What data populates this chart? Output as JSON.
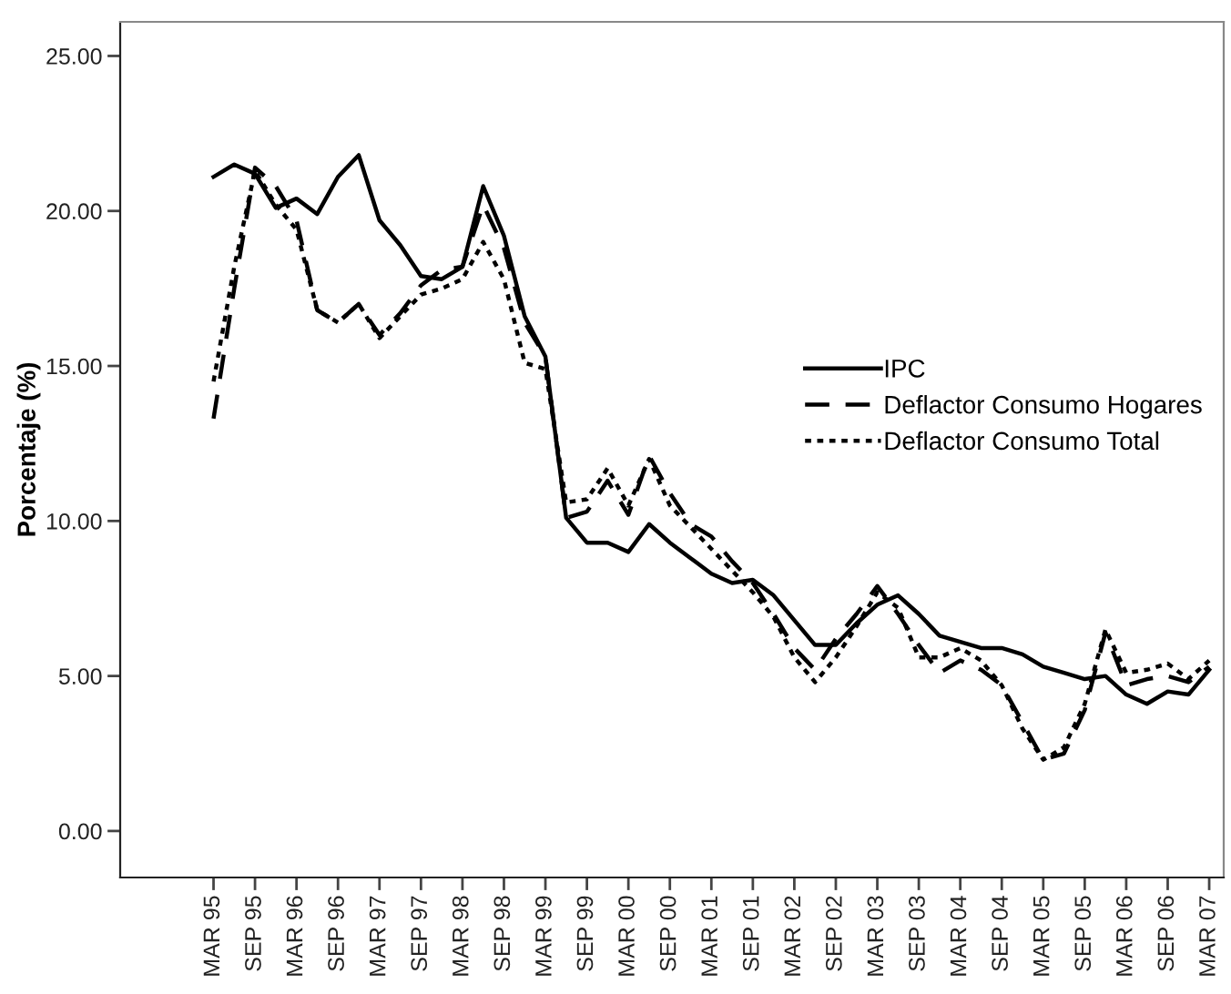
{
  "chart_data": {
    "type": "line",
    "ylabel": "Porcentaje (%)",
    "categories": [
      "MAR 95",
      null,
      "SEP 95",
      null,
      "MAR 96",
      null,
      "SEP 96",
      null,
      "MAR 97",
      null,
      "SEP 97",
      null,
      "MAR 98",
      null,
      "SEP 98",
      null,
      "MAR 99",
      null,
      "SEP 99",
      null,
      "MAR 00",
      null,
      "SEP 00",
      null,
      "MAR 01",
      null,
      "SEP 01",
      null,
      "MAR 02",
      null,
      "SEP 02",
      null,
      "MAR 03",
      null,
      "SEP 03",
      null,
      "MAR 04",
      null,
      "SEP 04",
      null,
      "MAR 05",
      null,
      "SEP 05",
      null,
      "MAR 06",
      null,
      "SEP 06",
      null,
      "MAR 07"
    ],
    "series": [
      {
        "name": "IPC",
        "color": "#000000",
        "line_style": "solid",
        "values": [
          21.1,
          21.5,
          21.2,
          20.1,
          20.4,
          19.9,
          21.1,
          21.8,
          19.7,
          18.9,
          17.9,
          17.8,
          18.2,
          20.8,
          19.2,
          16.6,
          15.3,
          10.1,
          9.3,
          9.3,
          9.0,
          9.9,
          9.3,
          8.8,
          8.3,
          8.0,
          8.1,
          7.6,
          6.8,
          6.0,
          6.0,
          6.7,
          7.3,
          7.6,
          7.0,
          6.3,
          6.1,
          5.9,
          5.9,
          5.7,
          5.3,
          5.1,
          4.9,
          5.0,
          4.4,
          4.1,
          4.5,
          4.4,
          5.2
        ]
      },
      {
        "name": "Deflactor Consumo Hogares",
        "color": "#000000",
        "line_style": "dashed",
        "values": [
          13.3,
          17.5,
          21.4,
          20.8,
          19.7,
          16.8,
          16.4,
          17.0,
          16.0,
          16.7,
          17.6,
          18.1,
          18.2,
          20.2,
          18.8,
          16.4,
          15.3,
          10.1,
          10.3,
          11.3,
          10.2,
          12.1,
          10.9,
          9.9,
          9.5,
          8.7,
          8.0,
          7.0,
          5.9,
          5.2,
          6.2,
          7.0,
          7.9,
          7.0,
          6.0,
          5.1,
          5.5,
          5.2,
          4.7,
          3.5,
          2.3,
          2.5,
          3.9,
          6.4,
          4.7,
          4.9,
          5.0,
          4.8,
          5.3
        ]
      },
      {
        "name": "Deflactor Consumo Total",
        "color": "#000000",
        "line_style": "dotted",
        "values": [
          14.5,
          18.2,
          21.3,
          20.2,
          19.4,
          16.8,
          16.4,
          17.0,
          15.9,
          16.6,
          17.3,
          17.5,
          17.8,
          19.0,
          17.8,
          15.1,
          14.9,
          10.6,
          10.7,
          11.7,
          10.5,
          12.0,
          10.5,
          9.8,
          9.1,
          8.4,
          7.7,
          6.9,
          5.6,
          4.8,
          5.6,
          6.6,
          7.7,
          7.2,
          5.6,
          5.6,
          5.9,
          5.5,
          4.7,
          3.3,
          2.3,
          2.7,
          4.1,
          6.5,
          5.1,
          5.2,
          5.4,
          4.9,
          5.5
        ]
      }
    ],
    "ylim": [
      -1.5,
      26.1
    ],
    "yticks": [
      {
        "value": 0,
        "label": "0.00"
      },
      {
        "value": 5,
        "label": "5.00"
      },
      {
        "value": 10,
        "label": "10.00"
      },
      {
        "value": 15,
        "label": "15.00"
      },
      {
        "value": 20,
        "label": "20.00"
      },
      {
        "value": 25,
        "label": "25.00"
      }
    ],
    "legend": "right",
    "grid": false,
    "marker": "none"
  }
}
